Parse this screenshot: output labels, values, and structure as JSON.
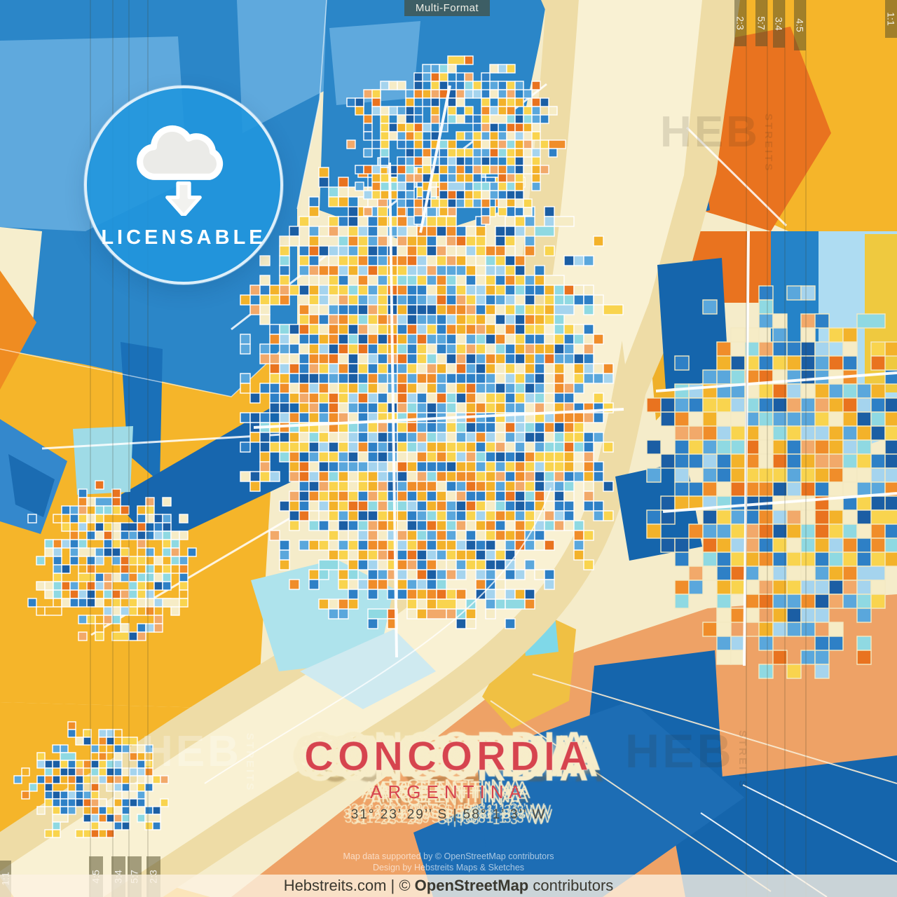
{
  "format_badge": {
    "label": "Multi-Format"
  },
  "aspect_ratios": {
    "left": [
      "4:5",
      "3:4",
      "5:7",
      "2:3"
    ],
    "left_edge": "1:1",
    "right": [
      "2:3",
      "5:7",
      "3:4",
      "4:5"
    ],
    "right_edge": "1:1"
  },
  "license_badge": {
    "label": "LICENSABLE",
    "icon": "cloud-download-icon",
    "color": "#2196dd"
  },
  "watermark": {
    "big": "HEB",
    "small": "STREITS"
  },
  "title": {
    "city": "CONCORDIA",
    "country": "ARGENTINA",
    "coordinates": "31° 23’ 29’’ S | 58° 1’ 3’’ W",
    "accent_color": "#d6444e"
  },
  "credits": {
    "line1": "Map data supported by © OpenStreetMap contributors",
    "line2": "Design by Hebstreits Maps & Sketches"
  },
  "footer": {
    "prefix": "Hebstreits.com | © ",
    "bold": "OpenStreetMap",
    "suffix": " contributors"
  },
  "map_palette": {
    "base_cream": "#f5ecca",
    "river_sand": "#eedca6",
    "river_channel": "#f9f1d3",
    "gold": "#f5b52a",
    "orange": "#f08c21",
    "deep_orange": "#e9731f",
    "salmon": "#eea266",
    "blue_mid": "#2b86c8",
    "blue_light": "#5fa9dd",
    "blue_royal": "#1565ac",
    "cyan_pale": "#9fdbe6",
    "road_white": "#ffffff",
    "block_colors": [
      {
        "color": "#1b5ea4",
        "weight": 2.2
      },
      {
        "color": "#2e80c6",
        "weight": 3.0
      },
      {
        "color": "#5aa7dc",
        "weight": 2.0
      },
      {
        "color": "#a5d4ee",
        "weight": 1.6
      },
      {
        "color": "#8fd9e2",
        "weight": 1.4
      },
      {
        "color": "#f9d44e",
        "weight": 3.0
      },
      {
        "color": "#f3b22a",
        "weight": 2.4
      },
      {
        "color": "#f08d2a",
        "weight": 1.8
      },
      {
        "color": "#e9731f",
        "weight": 1.2
      },
      {
        "color": "#f6ecc6",
        "weight": 2.2
      },
      {
        "color": "#f2a96a",
        "weight": 1.1
      }
    ]
  }
}
